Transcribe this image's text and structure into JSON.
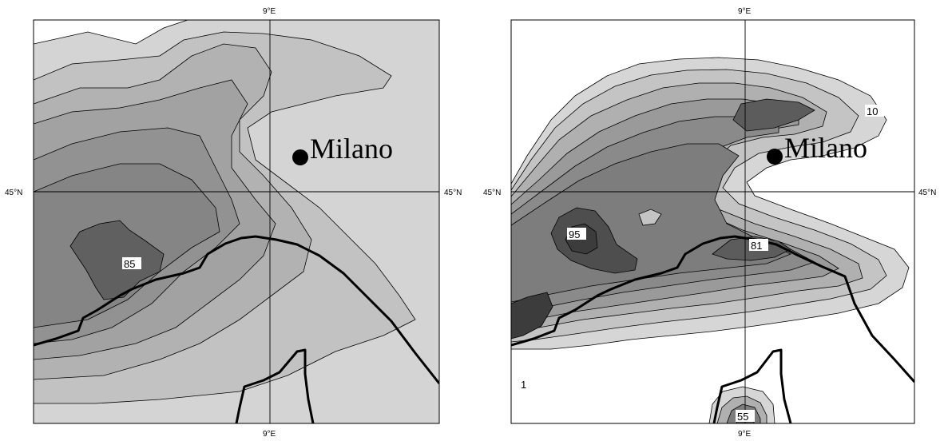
{
  "maps": [
    {
      "id": "left",
      "lon_label_top": "9°E",
      "lon_label_bottom": "9°E",
      "lat_label_left": "45°N",
      "lat_label_right": "45°N",
      "city": "Milano",
      "contour_labels": [
        "85"
      ]
    },
    {
      "id": "right",
      "lon_label_top": "9°E",
      "lon_label_bottom": "9°E",
      "lat_label_left": "45°N",
      "lat_label_right": "45°N",
      "city": "Milano",
      "contour_labels": [
        "95",
        "81",
        "55",
        "10",
        "1"
      ]
    }
  ],
  "colors": {
    "fill_light": "#d0d0d0",
    "fill_mid1": "#b8b8b8",
    "fill_mid2": "#a0a0a0",
    "fill_mid3": "#888888",
    "fill_dark": "#555555",
    "coastline": "#000000"
  }
}
